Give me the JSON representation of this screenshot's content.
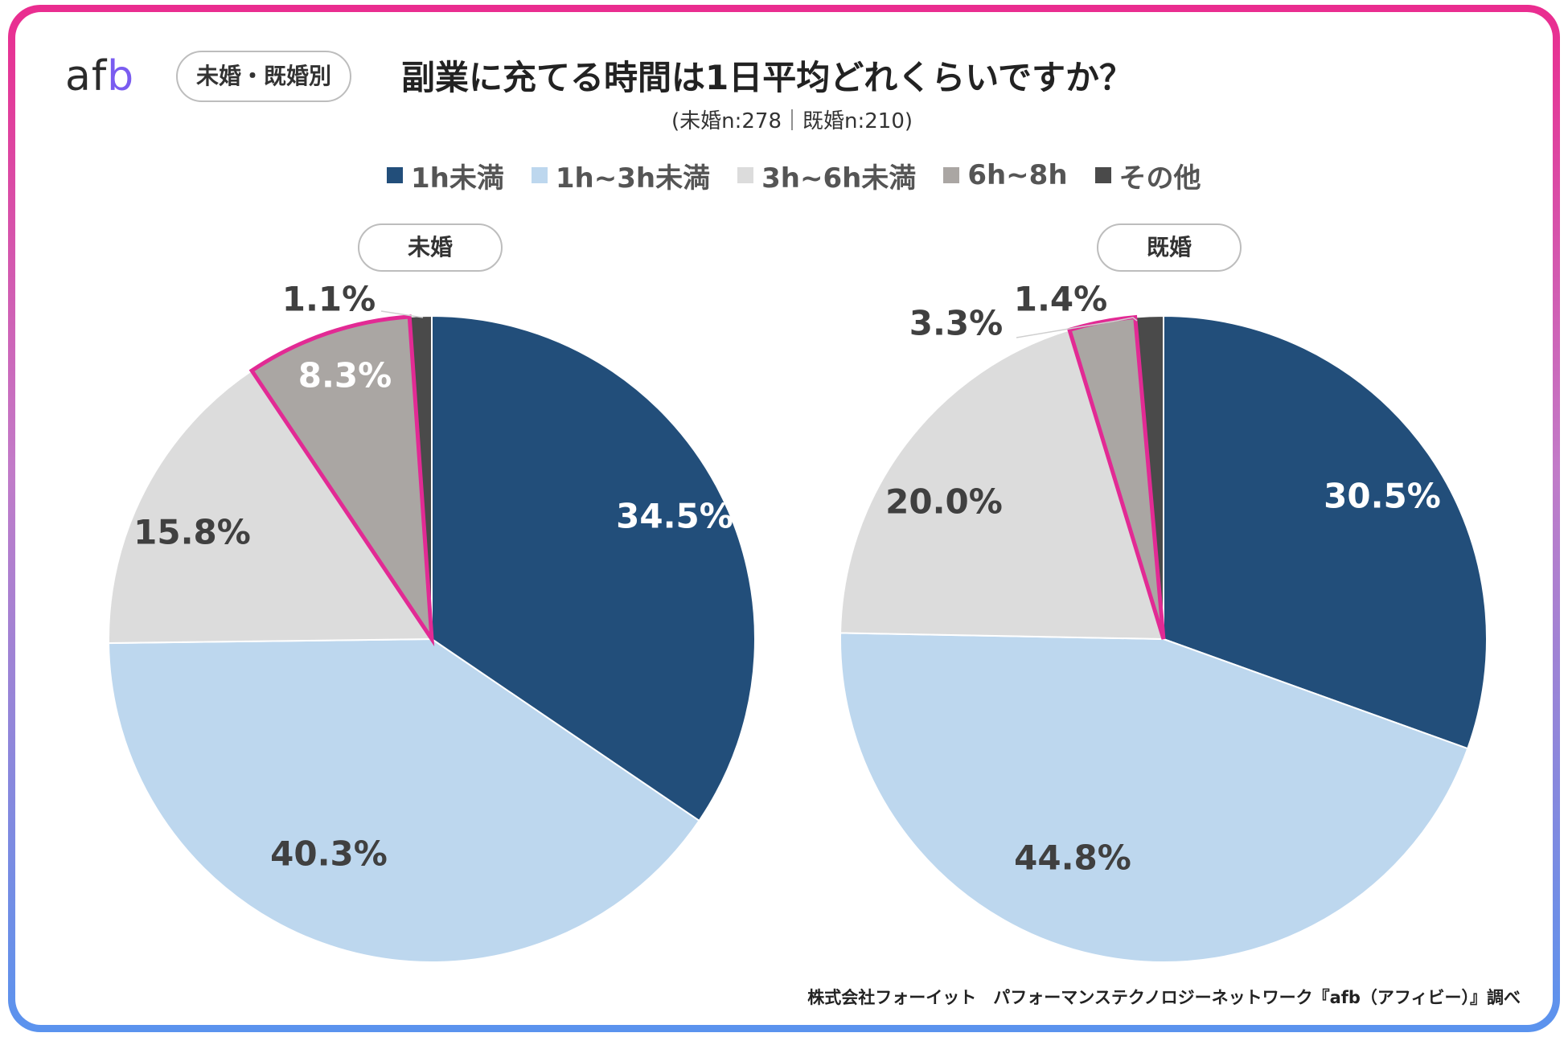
{
  "header": {
    "logo_text": "af",
    "logo_text_b": "b",
    "category_pill": "未婚・既婚別",
    "title": "副業に充てる時間は1日平均どれくらいですか？",
    "subtitle": "(未婚n:278｜既婚n:210)"
  },
  "footer": {
    "source": "株式会社フォーイット　パフォーマンステクノロジーネットワーク『afb（アフィビー）』調べ"
  },
  "colors": {
    "accent_border": "#e8309a",
    "highlight": "#e22a94"
  },
  "chart_data": [
    {
      "type": "pie",
      "title": "未婚",
      "categories": [
        "1h未満",
        "1h~3h未満",
        "3h~6h未満",
        "6h~8h",
        "その他"
      ],
      "values": [
        34.5,
        40.3,
        15.8,
        8.3,
        1.1
      ],
      "labels": [
        "34.5%",
        "40.3%",
        "15.8%",
        "8.3%",
        "1.1%"
      ],
      "colors": [
        "#224e7a",
        "#bdd7ee",
        "#dcdcdc",
        "#aaa6a3",
        "#4a4a4a"
      ],
      "highlighted": "6h~8h",
      "legend_position": "top"
    },
    {
      "type": "pie",
      "title": "既婚",
      "categories": [
        "1h未満",
        "1h~3h未満",
        "3h~6h未満",
        "6h~8h",
        "その他"
      ],
      "values": [
        30.5,
        44.8,
        20.0,
        3.3,
        1.4
      ],
      "labels": [
        "30.5%",
        "44.8%",
        "20.0%",
        "3.3%",
        "1.4%"
      ],
      "colors": [
        "#224e7a",
        "#bdd7ee",
        "#dcdcdc",
        "#aaa6a3",
        "#4a4a4a"
      ],
      "highlighted": "6h~8h",
      "legend_position": "top"
    }
  ]
}
